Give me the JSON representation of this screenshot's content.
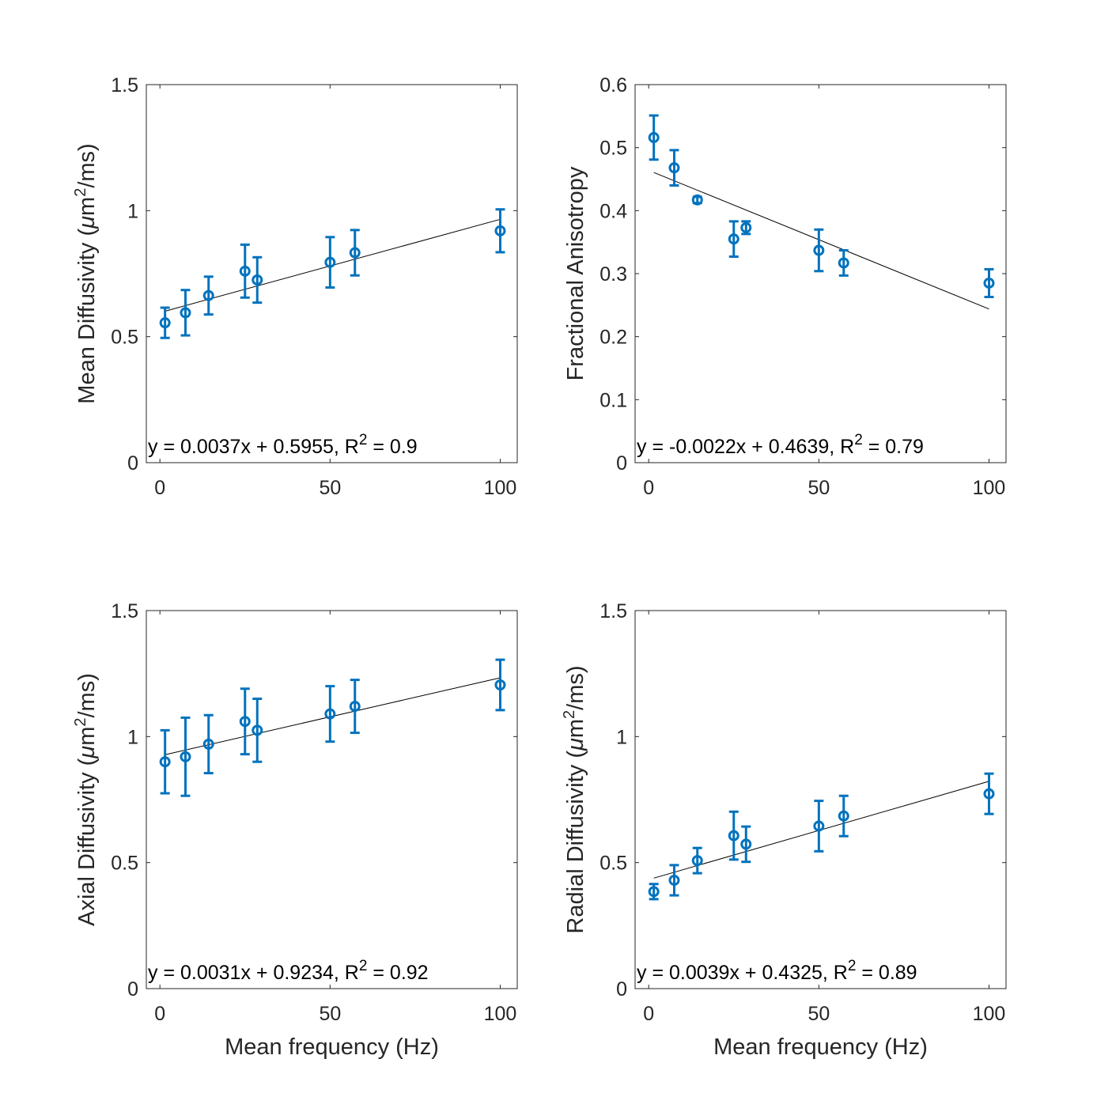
{
  "figure": {
    "series_color": "#0072BD",
    "fit_color": "#000000",
    "axes_color": "#262626"
  },
  "chart_data": [
    {
      "type": "scatter",
      "id": "md",
      "ylabel_main": "Mean Diffusivity (",
      "ylabel_mu": "μ",
      "ylabel_unit": "m",
      "ylabel_sup": "2",
      "ylabel_tail": "/ms)",
      "xlabel": "",
      "xlim": [
        -4,
        105
      ],
      "ylim": [
        0,
        1.5
      ],
      "xticks": [
        0,
        50,
        100
      ],
      "xtick_labels": [
        "0",
        "50",
        "100"
      ],
      "yticks": [
        0,
        0.5,
        1,
        1.5
      ],
      "ytick_labels": [
        "0",
        "0.5",
        "1",
        "1.5"
      ],
      "x": [
        1.5,
        7.5,
        14.3,
        25,
        28.6,
        50,
        57.3,
        100
      ],
      "y": [
        0.555,
        0.595,
        0.663,
        0.76,
        0.725,
        0.795,
        0.833,
        0.92
      ],
      "err": [
        0.06,
        0.09,
        0.075,
        0.105,
        0.09,
        0.1,
        0.09,
        0.085
      ],
      "fit": {
        "slope": 0.0037,
        "intercept": 0.5955,
        "x_start": 1.5,
        "x_end": 100
      },
      "equation_main": "y = 0.0037x + 0.5955, R",
      "equation_sup": "2",
      "equation_tail": " = 0.9"
    },
    {
      "type": "scatter",
      "id": "fa",
      "ylabel_main": "Fractional Anisotropy",
      "ylabel_mu": "",
      "ylabel_unit": "",
      "ylabel_sup": "",
      "ylabel_tail": "",
      "xlabel": "",
      "xlim": [
        -4,
        105
      ],
      "ylim": [
        0,
        0.6
      ],
      "xticks": [
        0,
        50,
        100
      ],
      "xtick_labels": [
        "0",
        "50",
        "100"
      ],
      "yticks": [
        0,
        0.1,
        0.2,
        0.3,
        0.4,
        0.5,
        0.6
      ],
      "ytick_labels": [
        "0",
        "0.1",
        "0.2",
        "0.3",
        "0.4",
        "0.5",
        "0.6"
      ],
      "x": [
        1.5,
        7.5,
        14.3,
        25,
        28.6,
        50,
        57.3,
        100
      ],
      "y": [
        0.516,
        0.468,
        0.417,
        0.355,
        0.373,
        0.337,
        0.317,
        0.285
      ],
      "err": [
        0.035,
        0.028,
        0.005,
        0.028,
        0.01,
        0.033,
        0.02,
        0.022
      ],
      "fit": {
        "slope": -0.0022,
        "intercept": 0.4639,
        "x_start": 1.5,
        "x_end": 100
      },
      "equation_main": "y = -0.0022x + 0.4639, R",
      "equation_sup": "2",
      "equation_tail": " = 0.79"
    },
    {
      "type": "scatter",
      "id": "ad",
      "ylabel_main": "Axial Diffusivity (",
      "ylabel_mu": "μ",
      "ylabel_unit": "m",
      "ylabel_sup": "2",
      "ylabel_tail": "/ms)",
      "xlabel": "Mean frequency (Hz)",
      "xlim": [
        -4,
        105
      ],
      "ylim": [
        0,
        1.5
      ],
      "xticks": [
        0,
        50,
        100
      ],
      "xtick_labels": [
        "0",
        "50",
        "100"
      ],
      "yticks": [
        0,
        0.5,
        1,
        1.5
      ],
      "ytick_labels": [
        "0",
        "0.5",
        "1",
        "1.5"
      ],
      "x": [
        1.5,
        7.5,
        14.3,
        25,
        28.6,
        50,
        57.3,
        100
      ],
      "y": [
        0.9,
        0.92,
        0.97,
        1.06,
        1.025,
        1.09,
        1.12,
        1.205
      ],
      "err": [
        0.125,
        0.155,
        0.115,
        0.13,
        0.125,
        0.11,
        0.105,
        0.1
      ],
      "fit": {
        "slope": 0.0031,
        "intercept": 0.9234,
        "x_start": 1.5,
        "x_end": 100
      },
      "equation_main": "y = 0.0031x + 0.9234, R",
      "equation_sup": "2",
      "equation_tail": " = 0.92"
    },
    {
      "type": "scatter",
      "id": "rd",
      "ylabel_main": "Radial Diffusivity (",
      "ylabel_mu": "μ",
      "ylabel_unit": "m",
      "ylabel_sup": "2",
      "ylabel_tail": "/ms)",
      "xlabel": "Mean frequency (Hz)",
      "xlim": [
        -4,
        105
      ],
      "ylim": [
        0,
        1.5
      ],
      "xticks": [
        0,
        50,
        100
      ],
      "xtick_labels": [
        "0",
        "50",
        "100"
      ],
      "yticks": [
        0,
        0.5,
        1,
        1.5
      ],
      "ytick_labels": [
        "0",
        "0.5",
        "1",
        "1.5"
      ],
      "x": [
        1.5,
        7.5,
        14.3,
        25,
        28.6,
        50,
        57.3,
        100
      ],
      "y": [
        0.385,
        0.43,
        0.508,
        0.607,
        0.573,
        0.645,
        0.685,
        0.773
      ],
      "err": [
        0.03,
        0.06,
        0.05,
        0.095,
        0.07,
        0.1,
        0.08,
        0.08
      ],
      "fit": {
        "slope": 0.0039,
        "intercept": 0.4325,
        "x_start": 1.5,
        "x_end": 100
      },
      "equation_main": "y = 0.0039x + 0.4325, R",
      "equation_sup": "2",
      "equation_tail": " = 0.89"
    }
  ]
}
